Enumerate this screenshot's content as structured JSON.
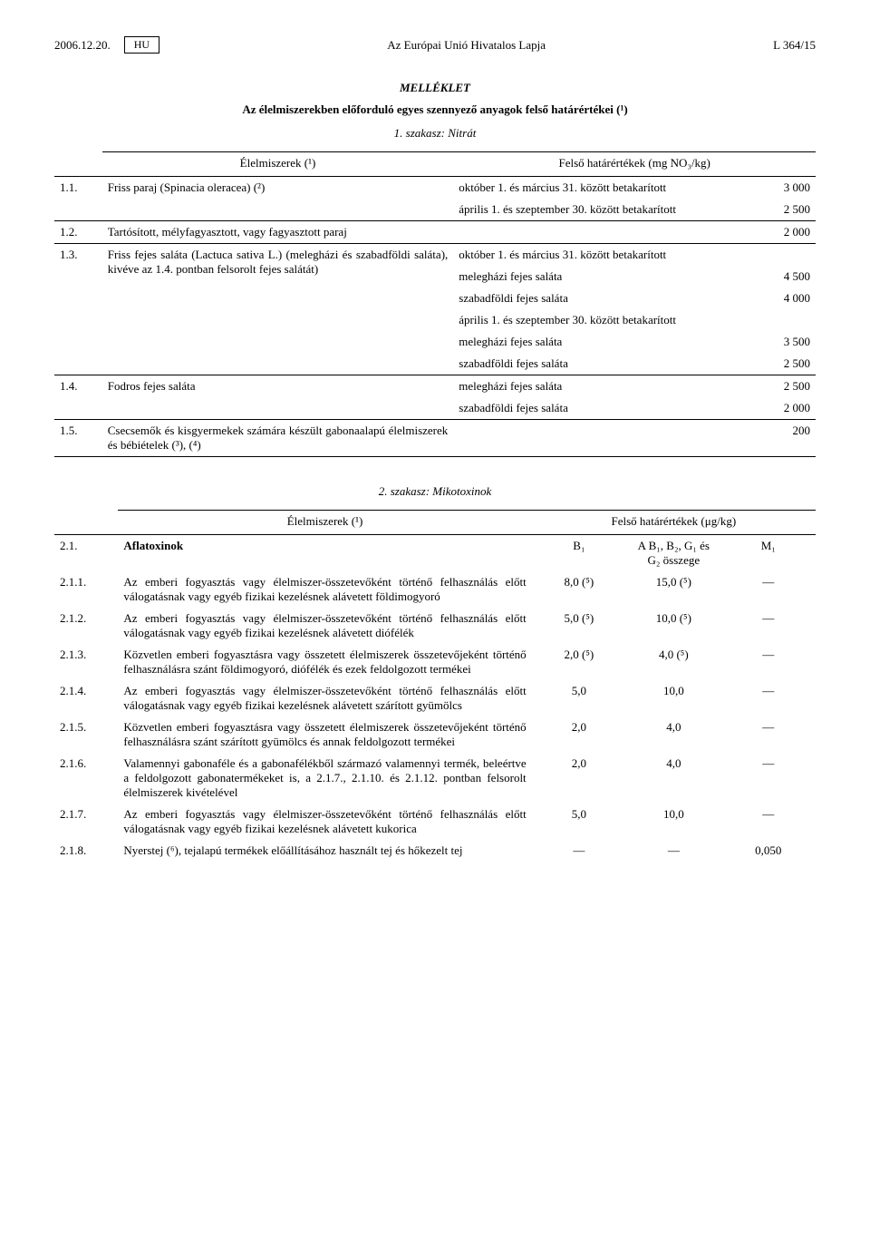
{
  "header": {
    "date": "2006.12.20.",
    "lang": "HU",
    "journal": "Az Európai Unió Hivatalos Lapja",
    "page": "L 364/15"
  },
  "annex": {
    "title": "MELLÉKLET",
    "subtitle": "Az élelmiszerekben előforduló egyes szennyező anyagok felső határértékei (¹)",
    "section1": "1. szakasz: Nitrát",
    "section2": "2. szakasz: Mikotoxinok"
  },
  "t1": {
    "hdr_food": "Élelmiszerek (¹)",
    "hdr_limits": "Felső határértékek (mg NO₃/kg)",
    "rows": [
      {
        "num": "1.1.",
        "food": "Friss paraj (Spinacia oleracea) (²)",
        "details": [
          [
            "október 1. és március 31. között betakarított",
            "3 000"
          ],
          [
            "április 1. és szeptember 30. között betakarított",
            "2 500"
          ]
        ]
      },
      {
        "num": "1.2.",
        "food": "Tartósított, mélyfagyasztott, vagy fagyasztott paraj",
        "details": [
          [
            "",
            "2 000"
          ]
        ]
      },
      {
        "num": "1.3.",
        "food": "Friss fejes saláta (Lactuca sativa L.) (melegházi és szabadföldi saláta), kivéve az 1.4. pontban felsorolt fejes salátát)",
        "details": [
          [
            "október 1. és március 31. között betakarított",
            ""
          ],
          [
            "melegházi fejes saláta",
            "4 500"
          ],
          [
            "szabadföldi fejes saláta",
            "4 000"
          ],
          [
            "április 1. és szeptember 30. között betakarított",
            ""
          ],
          [
            "melegházi fejes saláta",
            "3 500"
          ],
          [
            "szabadföldi fejes saláta",
            "2 500"
          ]
        ]
      },
      {
        "num": "1.4.",
        "food": "Fodros fejes saláta",
        "details": [
          [
            "melegházi fejes saláta",
            "2 500"
          ],
          [
            "szabadföldi fejes saláta",
            "2 000"
          ]
        ]
      },
      {
        "num": "1.5.",
        "food": "Csecsemők és kisgyermekek számára készült gabonaalapú élelmiszerek és bébiételek (³), (⁴)",
        "details": [
          [
            "",
            "200"
          ]
        ]
      }
    ]
  },
  "t2": {
    "hdr_food": "Élelmiszerek (¹)",
    "hdr_limits": "Felső határértékek (μg/kg)",
    "head_row": {
      "num": "2.1.",
      "food": "Aflatoxinok",
      "v1": "B₁",
      "v2": "A B₁, B₂, G₁ és G₂ összege",
      "v3": "M₁"
    },
    "rows": [
      {
        "num": "2.1.1.",
        "food": "Az emberi fogyasztás vagy élelmiszer-összetevőként történő felhasználás előtt válogatásnak vagy egyéb fizikai kezelésnek alávetett földimogyoró",
        "v1": "8,0 (⁵)",
        "v2": "15,0 (⁵)",
        "v3": "—"
      },
      {
        "num": "2.1.2.",
        "food": "Az emberi fogyasztás vagy élelmiszer-összetevőként történő felhasználás előtt válogatásnak vagy egyéb fizikai kezelésnek alávetett diófélék",
        "v1": "5,0 (⁵)",
        "v2": "10,0 (⁵)",
        "v3": "—"
      },
      {
        "num": "2.1.3.",
        "food": "Közvetlen emberi fogyasztásra vagy összetett élelmiszerek összetevőjeként történő felhasználásra szánt földimogyoró, diófélék és ezek feldolgozott termékei",
        "v1": "2,0 (⁵)",
        "v2": "4,0 (⁵)",
        "v3": "—"
      },
      {
        "num": "2.1.4.",
        "food": "Az emberi fogyasztás vagy élelmiszer-összetevőként történő felhasználás előtt válogatásnak vagy egyéb fizikai kezelésnek alávetett szárított gyümölcs",
        "v1": "5,0",
        "v2": "10,0",
        "v3": "—"
      },
      {
        "num": "2.1.5.",
        "food": "Közvetlen emberi fogyasztásra vagy összetett élelmiszerek összetevőjeként történő felhasználásra szánt szárított gyümölcs és annak feldolgozott termékei",
        "v1": "2,0",
        "v2": "4,0",
        "v3": "—"
      },
      {
        "num": "2.1.6.",
        "food": "Valamennyi gabonaféle és a gabonafélékből származó valamennyi termék, beleértve a feldolgozott gabonatermékeket is, a 2.1.7., 2.1.10. és 2.1.12. pontban felsorolt élelmiszerek kivételével",
        "v1": "2,0",
        "v2": "4,0",
        "v3": "—"
      },
      {
        "num": "2.1.7.",
        "food": "Az emberi fogyasztás vagy élelmiszer-összetevőként történő felhasználás előtt válogatásnak vagy egyéb fizikai kezelésnek alávetett kukorica",
        "v1": "5,0",
        "v2": "10,0",
        "v3": "—"
      },
      {
        "num": "2.1.8.",
        "food": "Nyerstej (⁶), tejalapú termékek előállításához használt tej és hőkezelt tej",
        "v1": "—",
        "v2": "—",
        "v3": "0,050"
      }
    ]
  }
}
